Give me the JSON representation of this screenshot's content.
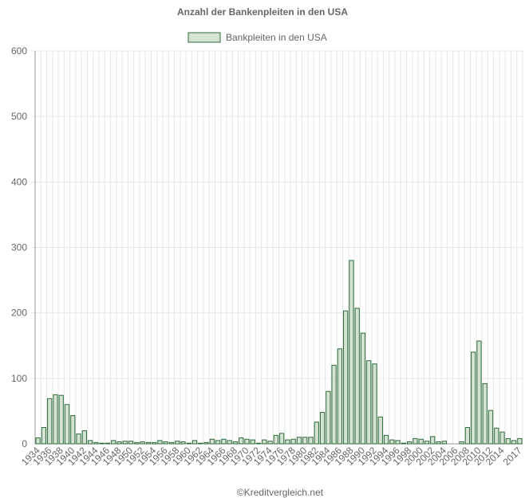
{
  "chart_data": {
    "type": "bar",
    "title": "Anzahl der Bankenpleiten in den USA",
    "legend_position": "top",
    "grid": true,
    "ylim": [
      0,
      600
    ],
    "yticks": [
      0,
      100,
      200,
      300,
      400,
      500,
      600
    ],
    "colors": {
      "bar_fill": "#d4e3d4",
      "bar_stroke": "#2e6b3a",
      "grid": "#e6e6e6",
      "axis": "#999999"
    },
    "series": [
      {
        "name": "Bankpleiten in den USA",
        "x": [
          1934,
          1935,
          1936,
          1937,
          1938,
          1939,
          1940,
          1941,
          1942,
          1943,
          1944,
          1945,
          1946,
          1947,
          1948,
          1949,
          1950,
          1951,
          1952,
          1953,
          1954,
          1955,
          1956,
          1957,
          1958,
          1959,
          1960,
          1961,
          1962,
          1963,
          1964,
          1965,
          1966,
          1967,
          1968,
          1969,
          1970,
          1971,
          1972,
          1973,
          1974,
          1975,
          1976,
          1977,
          1978,
          1979,
          1980,
          1981,
          1982,
          1983,
          1984,
          1985,
          1986,
          1987,
          1988,
          1989,
          1990,
          1991,
          1992,
          1993,
          1994,
          1995,
          1996,
          1997,
          1998,
          1999,
          2000,
          2001,
          2002,
          2003,
          2004,
          2005,
          2006,
          2007,
          2008,
          2009,
          2010,
          2011,
          2012,
          2013,
          2014,
          2015,
          2016,
          2017
        ],
        "values": [
          9,
          25,
          69,
          75,
          74,
          60,
          43,
          15,
          20,
          5,
          2,
          1,
          1,
          5,
          3,
          4,
          4,
          2,
          3,
          2,
          2,
          5,
          3,
          2,
          4,
          3,
          1,
          5,
          1,
          2,
          7,
          5,
          7,
          5,
          3,
          9,
          7,
          6,
          1,
          6,
          4,
          13,
          16,
          6,
          7,
          10,
          10,
          10,
          33,
          48,
          80,
          120,
          145,
          203,
          280,
          207,
          169,
          127,
          122,
          41,
          13,
          6,
          5,
          1,
          3,
          8,
          7,
          4,
          11,
          3,
          4,
          0,
          0,
          3,
          25,
          140,
          157,
          92,
          51,
          24,
          18,
          8,
          5,
          8
        ]
      }
    ]
  },
  "x_tick_labels": [
    "1934",
    "1936",
    "1938",
    "1940",
    "1942",
    "1944",
    "1946",
    "1948",
    "1950",
    "1952",
    "1954",
    "1956",
    "1958",
    "1960",
    "1962",
    "1964",
    "1966",
    "1968",
    "1970",
    "1972",
    "1974",
    "1976",
    "1978",
    "1980",
    "1982",
    "1984",
    "1986",
    "1988",
    "1990",
    "1992",
    "1994",
    "1996",
    "1998",
    "2000",
    "2002",
    "2004",
    "2006",
    "2008",
    "2010",
    "2012",
    "2014",
    "2017"
  ],
  "credit": "©Kreditvergleich.net"
}
